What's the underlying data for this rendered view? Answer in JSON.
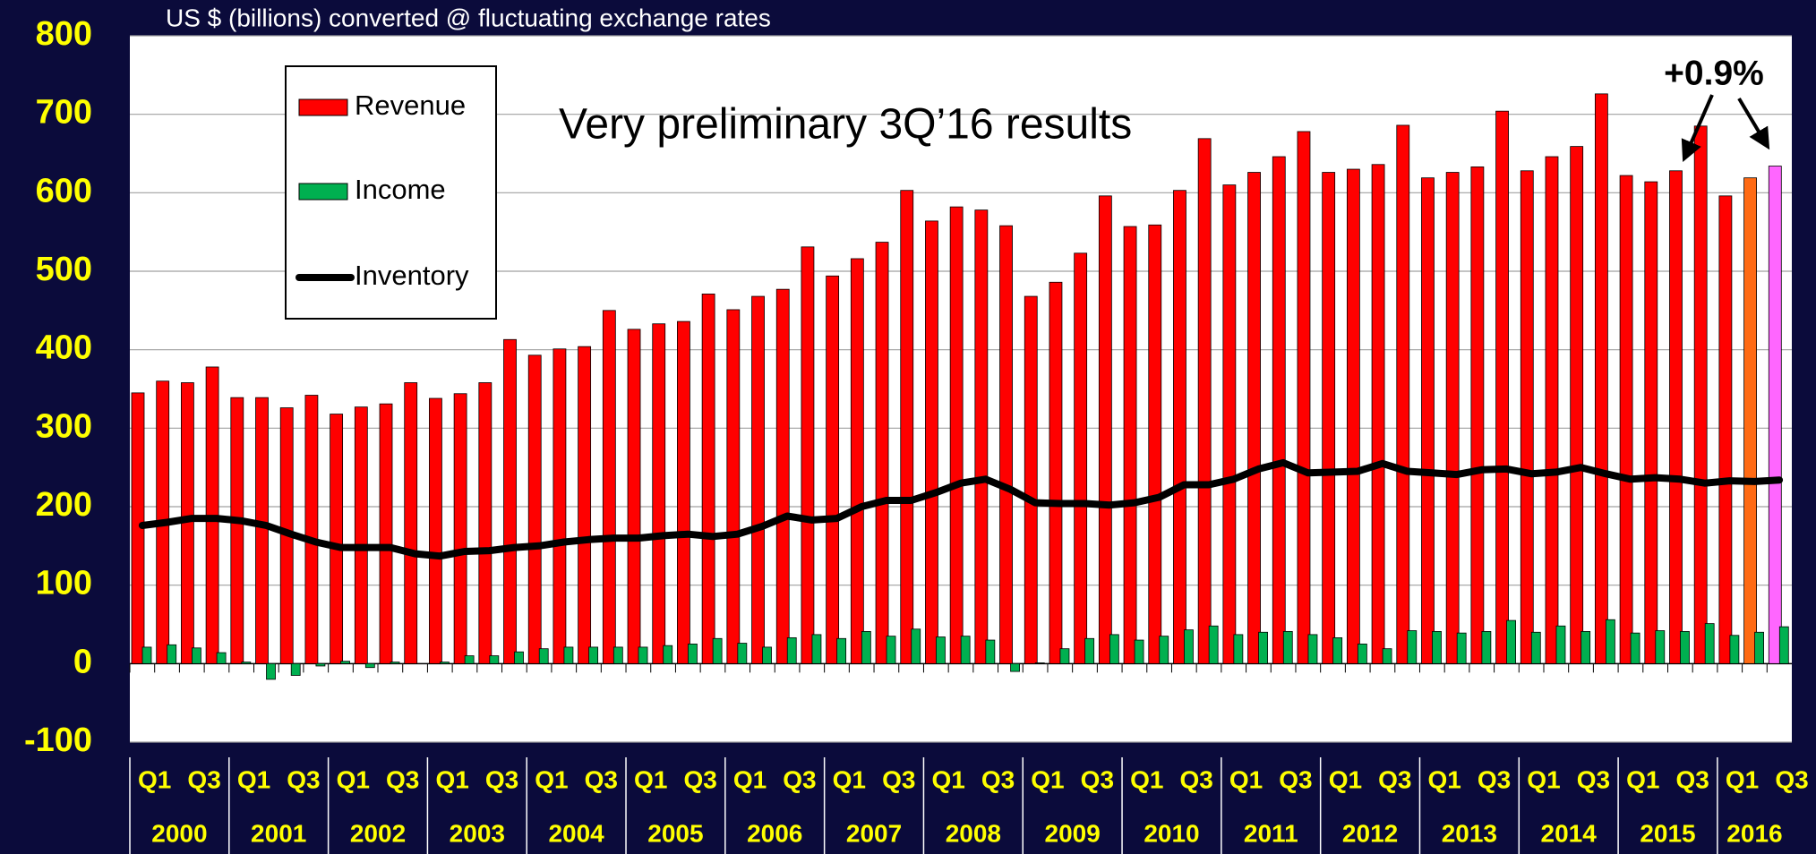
{
  "chart_data": {
    "type": "bar",
    "subtitle": "US $ (billions) converted @ fluctuating exchange rates",
    "annotations": [
      "Very preliminary 3Q’16 results",
      "+0.9%"
    ],
    "categories": [
      "Q1",
      null,
      "Q3",
      null,
      "Q1",
      null,
      "Q3",
      null,
      "Q1",
      null,
      "Q3",
      null,
      "Q1",
      null,
      "Q3",
      null,
      "Q1",
      null,
      "Q3",
      null,
      "Q1",
      null,
      "Q3",
      null,
      "Q1",
      null,
      "Q3",
      null,
      "Q1",
      null,
      "Q3",
      null,
      "Q1",
      null,
      "Q3",
      null,
      "Q1",
      null,
      "Q3",
      null,
      "Q1",
      null,
      "Q3",
      null,
      "Q1",
      null,
      "Q3",
      null,
      "Q1",
      null,
      "Q3",
      null,
      "Q1",
      null,
      "Q3",
      null,
      "Q1",
      null,
      "Q3",
      null,
      "Q1",
      null,
      "Q3",
      null,
      "Q1",
      null,
      "Q3"
    ],
    "years": [
      "2000",
      "2001",
      "2002",
      "2003",
      "2004",
      "2005",
      "2006",
      "2007",
      "2008",
      "2009",
      "2010",
      "2011",
      "2012",
      "2013",
      "2014",
      "2015",
      "2016"
    ],
    "series": [
      {
        "name": "Revenue",
        "type": "bar",
        "color": "#ff0000",
        "colors": [
          "#ff0000",
          "#ff0000",
          "#ff0000",
          "#ff0000",
          "#ff0000",
          "#ff0000",
          "#ff0000",
          "#ff0000",
          "#ff0000",
          "#ff0000",
          "#ff0000",
          "#ff0000",
          "#ff0000",
          "#ff0000",
          "#ff0000",
          "#ff0000",
          "#ff0000",
          "#ff0000",
          "#ff0000",
          "#ff0000",
          "#ff0000",
          "#ff0000",
          "#ff0000",
          "#ff0000",
          "#ff0000",
          "#ff0000",
          "#ff0000",
          "#ff0000",
          "#ff0000",
          "#ff0000",
          "#ff0000",
          "#ff0000",
          "#ff0000",
          "#ff0000",
          "#ff0000",
          "#ff0000",
          "#ff0000",
          "#ff0000",
          "#ff0000",
          "#ff0000",
          "#ff0000",
          "#ff0000",
          "#ff0000",
          "#ff0000",
          "#ff0000",
          "#ff0000",
          "#ff0000",
          "#ff0000",
          "#ff0000",
          "#ff0000",
          "#ff0000",
          "#ff0000",
          "#ff0000",
          "#ff0000",
          "#ff0000",
          "#ff0000",
          "#ff0000",
          "#ff0000",
          "#ff0000",
          "#ff0000",
          "#ff0000",
          "#ff0000",
          "#ff0000",
          "#ff0000",
          "#ff0000",
          "#ff6a13",
          "#ff66ff"
        ],
        "values": [
          345,
          360,
          358,
          378,
          339,
          339,
          326,
          342,
          318,
          327,
          331,
          358,
          338,
          344,
          358,
          413,
          393,
          401,
          404,
          450,
          426,
          433,
          436,
          471,
          451,
          468,
          477,
          531,
          494,
          516,
          537,
          603,
          564,
          582,
          578,
          558,
          468,
          486,
          523,
          596,
          557,
          559,
          603,
          669,
          610,
          626,
          646,
          678,
          626,
          630,
          636,
          686,
          619,
          626,
          633,
          704,
          628,
          646,
          659,
          726,
          622,
          614,
          628,
          685,
          596,
          619,
          634
        ]
      },
      {
        "name": "Income",
        "type": "bar",
        "color": "#00b050",
        "values": [
          21,
          24,
          20,
          14,
          2,
          -20,
          -15,
          -3,
          3,
          -5,
          2,
          0,
          2,
          10,
          10,
          15,
          19,
          21,
          21,
          21,
          21,
          23,
          25,
          32,
          26,
          21,
          33,
          37,
          32,
          41,
          35,
          44,
          34,
          35,
          30,
          -10,
          1,
          19,
          32,
          37,
          30,
          35,
          43,
          48,
          37,
          40,
          41,
          37,
          33,
          25,
          19,
          42,
          41,
          39,
          41,
          55,
          40,
          48,
          41,
          56,
          39,
          42,
          41,
          51,
          36,
          40,
          47
        ]
      },
      {
        "name": "Inventory",
        "type": "line",
        "color": "#000000",
        "values": [
          176,
          180,
          185,
          185,
          182,
          176,
          165,
          155,
          148,
          148,
          148,
          140,
          137,
          143,
          144,
          148,
          150,
          155,
          158,
          160,
          160,
          163,
          165,
          162,
          165,
          175,
          188,
          183,
          185,
          200,
          208,
          208,
          218,
          230,
          235,
          222,
          205,
          204,
          204,
          202,
          205,
          212,
          228,
          228,
          235,
          248,
          256,
          243,
          244,
          245,
          255,
          245,
          243,
          241,
          247,
          248,
          242,
          244,
          250,
          242,
          235,
          237,
          235,
          230,
          233,
          232,
          234
        ]
      }
    ],
    "ylim": [
      -100,
      800
    ],
    "yticks": [
      -100,
      0,
      100,
      200,
      300,
      400,
      500,
      600,
      700,
      800
    ],
    "grid": true,
    "legend": "upper left"
  }
}
